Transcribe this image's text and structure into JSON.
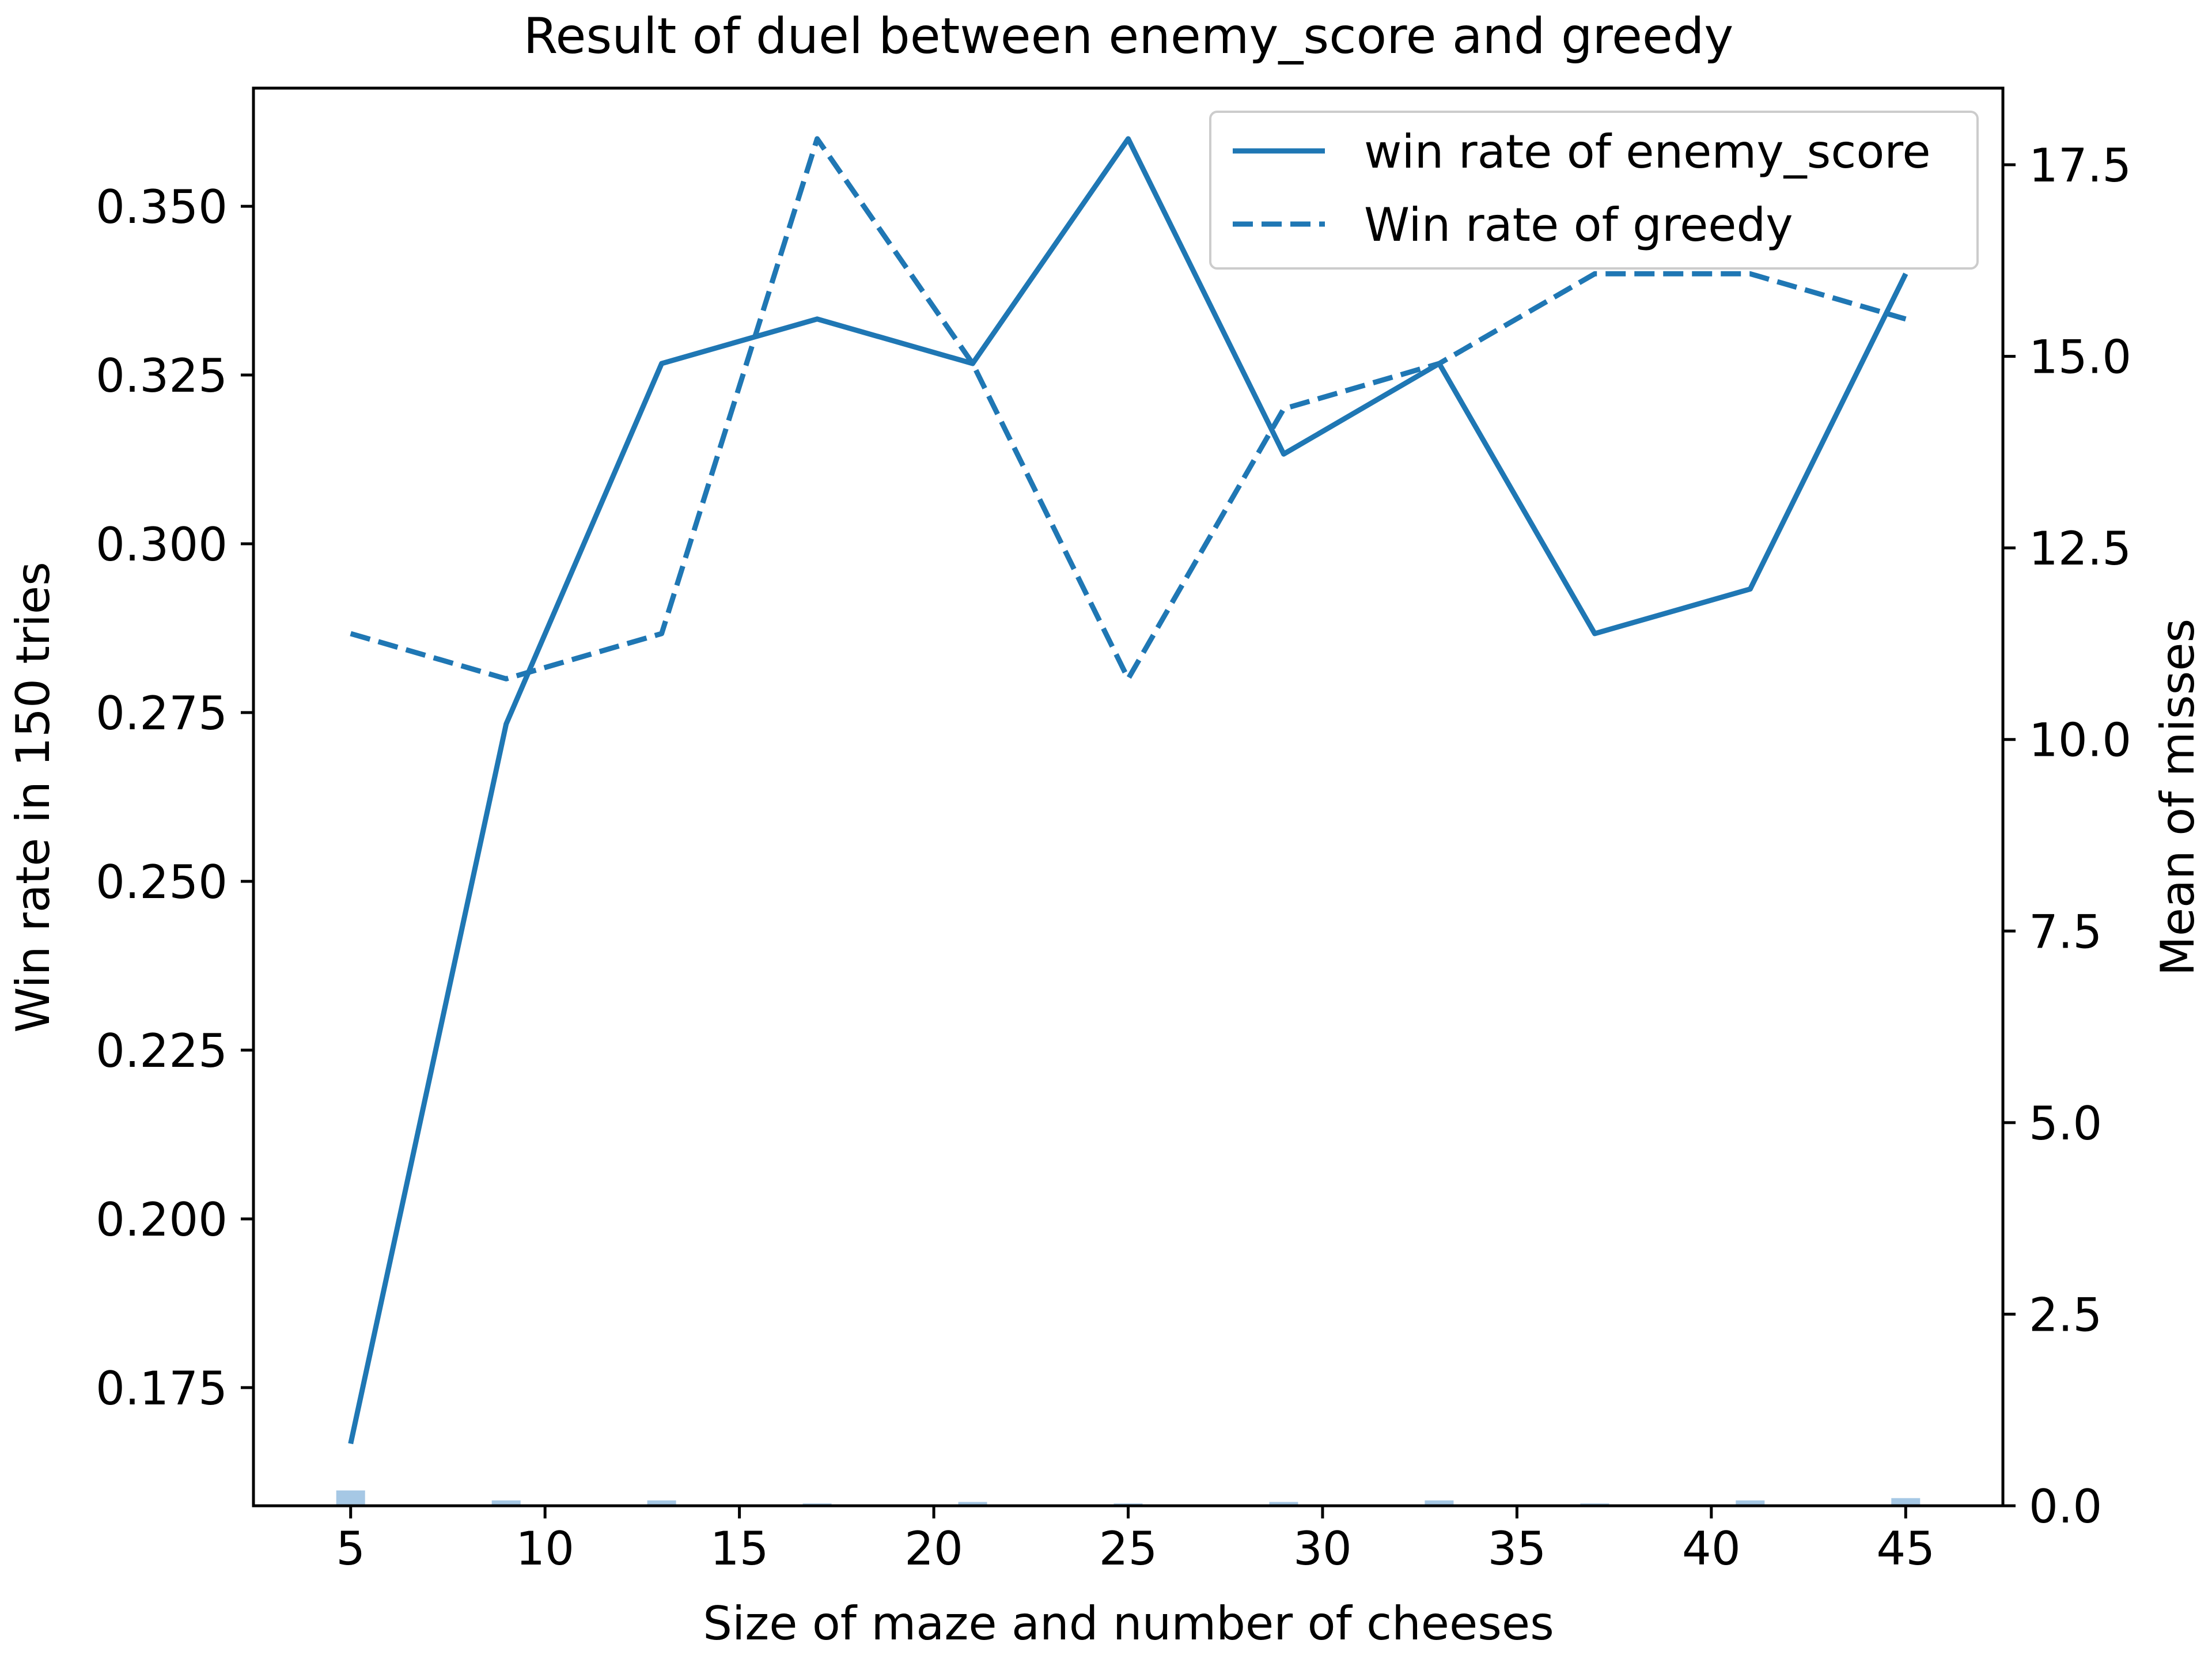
{
  "chart_data": {
    "type": "line",
    "title": "Result of duel between enemy_score and greedy",
    "xlabel": "Size of maze and number of cheeses",
    "ylabel": "Win rate in 150 tries",
    "y2label": "Mean of misses",
    "x": [
      5,
      9,
      13,
      17,
      21,
      25,
      29,
      33,
      37,
      41,
      45
    ],
    "xlim": [
      2.5,
      47.5
    ],
    "ylim": [
      0.1575,
      0.3675
    ],
    "y2lim": [
      0.0,
      18.5
    ],
    "xticks": [
      5,
      10,
      15,
      20,
      25,
      30,
      35,
      40,
      45
    ],
    "xtick_labels": [
      "5",
      "10",
      "15",
      "20",
      "25",
      "30",
      "35",
      "40",
      "45"
    ],
    "yticks": [
      0.175,
      0.2,
      0.225,
      0.25,
      0.275,
      0.3,
      0.325,
      0.35
    ],
    "ytick_labels": [
      "0.175",
      "0.200",
      "0.225",
      "0.250",
      "0.275",
      "0.300",
      "0.325",
      "0.350"
    ],
    "y2ticks": [
      0.0,
      2.5,
      5.0,
      7.5,
      10.0,
      12.5,
      15.0,
      17.5
    ],
    "y2tick_labels": [
      "0.0",
      "2.5",
      "5.0",
      "7.5",
      "10.0",
      "12.5",
      "15.0",
      "17.5"
    ],
    "series": [
      {
        "name": "win rate of enemy_score",
        "axis": "left",
        "style": "solid",
        "color": "#1f77b4",
        "values": [
          0.1667,
          0.2733,
          0.3267,
          0.3333,
          0.3267,
          0.36,
          0.3133,
          0.3267,
          0.2867,
          0.2933,
          0.34
        ]
      },
      {
        "name": "Win rate of greedy",
        "axis": "left",
        "style": "dashed",
        "color": "#1f77b4",
        "values": [
          0.2867,
          0.28,
          0.2867,
          0.36,
          0.3267,
          0.28,
          0.32,
          0.3267,
          0.34,
          0.34,
          0.3333
        ]
      },
      {
        "axis": "right",
        "type": "bar",
        "color": "#a6c8e5",
        "values": [
          0.2,
          0.07,
          0.07,
          0.03,
          0.05,
          0.03,
          0.05,
          0.07,
          0.03,
          0.07,
          0.1
        ]
      }
    ],
    "legend": {
      "position": "upper right"
    },
    "grid": false
  }
}
